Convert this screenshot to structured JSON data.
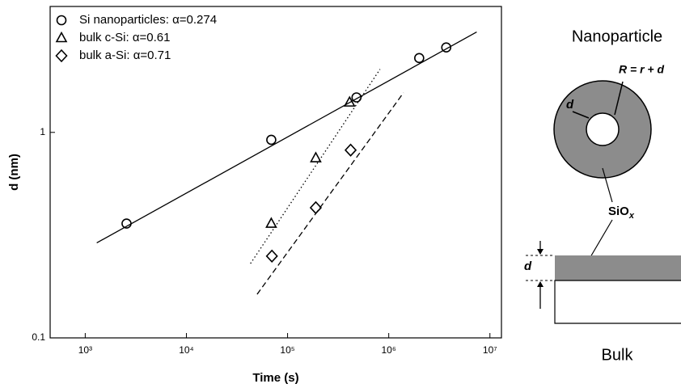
{
  "chart_data": {
    "type": "scatter",
    "x_label": "Time (s)",
    "y_label": "d (nm)",
    "xlog": true,
    "ylog": true,
    "xlim": [
      450,
      13000000
    ],
    "ylim": [
      0.1,
      4.1
    ],
    "xticks": [
      {
        "value": 1000,
        "label": "10³"
      },
      {
        "value": 10000,
        "label": "10⁴"
      },
      {
        "value": 100000,
        "label": "10⁵"
      },
      {
        "value": 1000000,
        "label": "10⁶"
      },
      {
        "value": 10000000,
        "label": "10⁷"
      }
    ],
    "yticks": [
      0.1,
      1
    ],
    "legend": "upper left",
    "series": [
      {
        "name": "Si nanoparticles: α=0.274",
        "marker": "circle",
        "color": "#000000",
        "x": [
          2560,
          69000,
          480000,
          2000000,
          3700000
        ],
        "values": [
          0.36,
          0.92,
          1.48,
          2.3,
          2.59
        ]
      },
      {
        "name": "bulk c-Si: α=0.61",
        "marker": "triangle",
        "color": "#000000",
        "x": [
          69000,
          190000,
          410000
        ],
        "values": [
          0.36,
          0.75,
          1.4
        ]
      },
      {
        "name": "bulk a-Si: α=0.71",
        "marker": "diamond",
        "color": "#000000",
        "x": [
          70000,
          190000,
          420000
        ],
        "values": [
          0.25,
          0.43,
          0.82
        ]
      }
    ],
    "fit_lines": [
      {
        "style": "solid",
        "x": [
          1300,
          7400000
        ],
        "values": [
          0.29,
          3.08
        ]
      },
      {
        "style": "dotted",
        "x": [
          43000,
          820000
        ],
        "values": [
          0.23,
          2.03
        ]
      },
      {
        "style": "dashed",
        "x": [
          50000,
          1400000
        ],
        "values": [
          0.163,
          1.56
        ]
      }
    ]
  },
  "diagram": {
    "top_title": "Nanoparticle",
    "radius_label": "R = r + d",
    "shell_label": "d",
    "oxide_label": "SiO",
    "oxide_subscript": "x",
    "layer_label": "d",
    "bottom_title": "Bulk"
  }
}
